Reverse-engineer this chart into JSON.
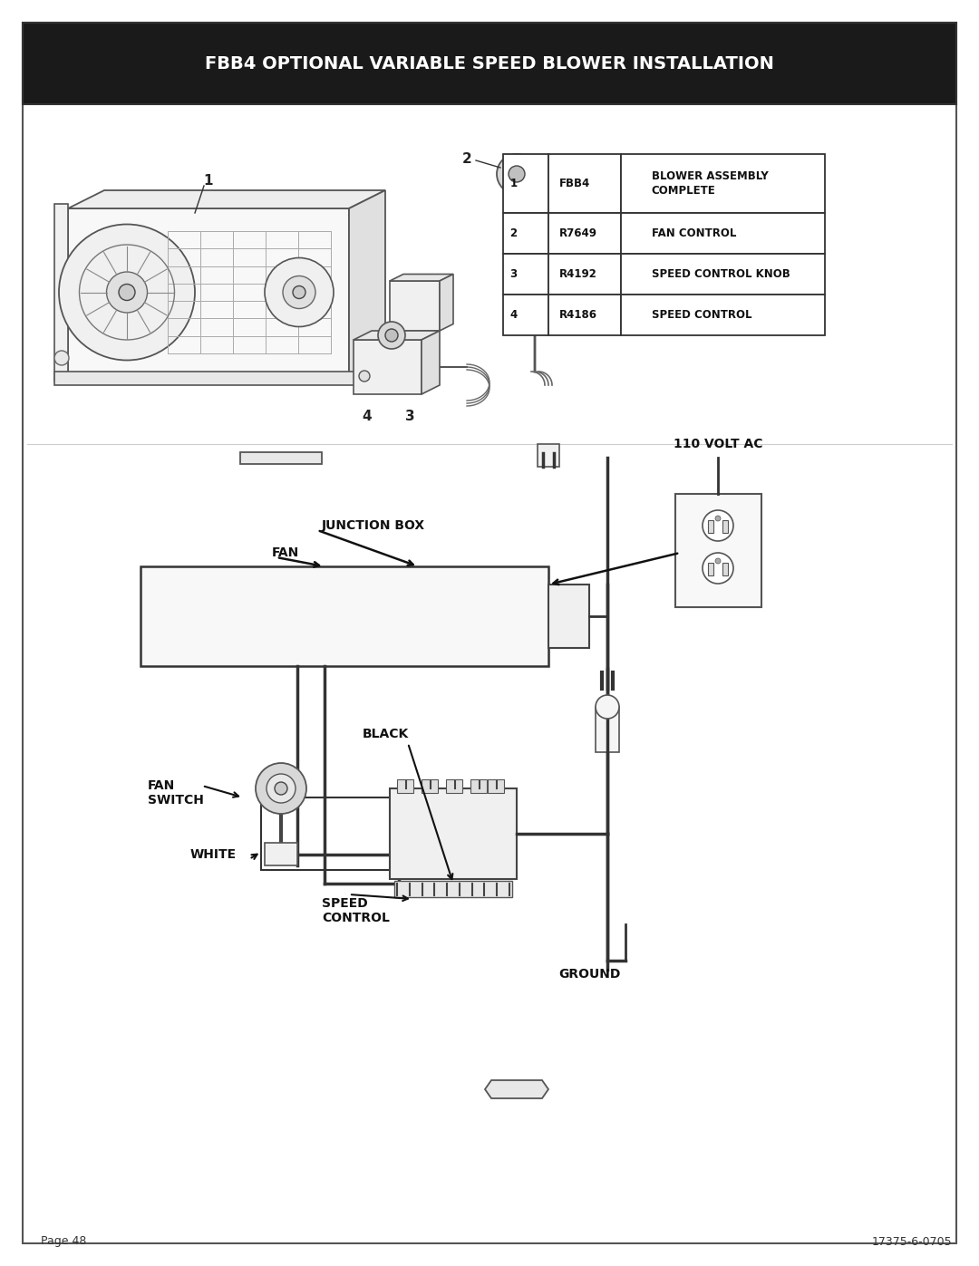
{
  "title": "FBB4 OPTIONAL VARIABLE SPEED BLOWER INSTALLATION",
  "title_bg": "#1a1a1a",
  "title_color": "#ffffff",
  "page_bg": "#ffffff",
  "border_color": "#555555",
  "table_rows": [
    [
      "1",
      "FBB4",
      "BLOWER ASSEMBLY\nCOMPLETE"
    ],
    [
      "2",
      "R7649",
      "FAN CONTROL"
    ],
    [
      "3",
      "R4192",
      "SPEED CONTROL KNOB"
    ],
    [
      "4",
      "R4186",
      "SPEED CONTROL"
    ]
  ],
  "labels": {
    "junction_box": "JUNCTION BOX",
    "fan": "FAN",
    "black": "BLACK",
    "fan_switch": "FAN\nSWITCH",
    "white": "WHITE",
    "speed_control": "SPEED\nCONTROL",
    "ground": "GROUND",
    "volt_ac": "110 VOLT AC"
  },
  "page_number": "Page 48",
  "doc_number": "17375-6-0705"
}
